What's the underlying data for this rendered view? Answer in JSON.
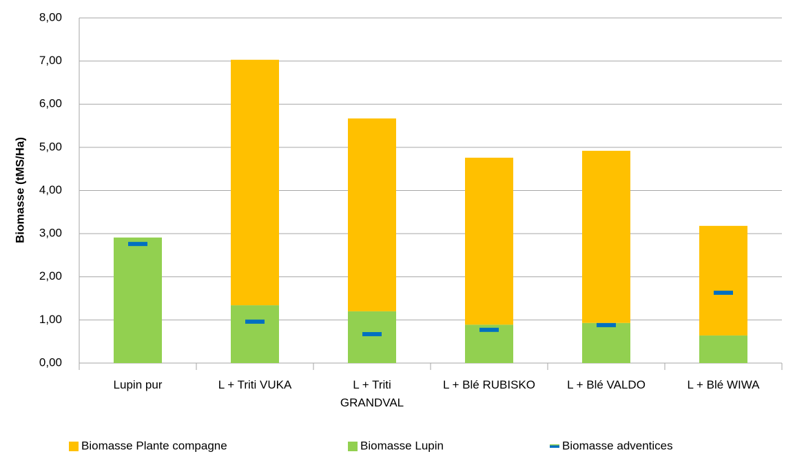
{
  "chart_data": {
    "type": "bar",
    "stacked": true,
    "y_label": "Biomasse (tMS/Ha)",
    "categories": [
      "Lupin pur",
      "L + Triti VUKA",
      "L + Triti\nGRANDVAL",
      "L + Blé RUBISKO",
      "L + Blé VALDO",
      "L + Blé WIWA"
    ],
    "series": [
      {
        "name": "Biomasse Plante compagne",
        "color": "#ffc000",
        "values": [
          0,
          5.69,
          4.47,
          3.87,
          3.99,
          2.54
        ]
      },
      {
        "name": "Biomasse Lupin",
        "color": "#92d050",
        "values": [
          2.91,
          1.34,
          1.2,
          0.89,
          0.93,
          0.64
        ]
      },
      {
        "name": "Biomasse adventices",
        "color": "#0070c0",
        "type": "marker",
        "values": [
          2.76,
          0.96,
          0.67,
          0.77,
          0.88,
          1.63
        ]
      }
    ],
    "ylim": [
      0,
      8
    ],
    "yticks": [
      {
        "value": 0,
        "label": "0,00"
      },
      {
        "value": 1,
        "label": "1,00"
      },
      {
        "value": 2,
        "label": "2,00"
      },
      {
        "value": 3,
        "label": "3,00"
      },
      {
        "value": 4,
        "label": "4,00"
      },
      {
        "value": 5,
        "label": "5,00"
      },
      {
        "value": 6,
        "label": "6,00"
      },
      {
        "value": 7,
        "label": "7,00"
      },
      {
        "value": 8,
        "label": "8,00"
      }
    ],
    "grid": true,
    "legend": "bottom"
  }
}
